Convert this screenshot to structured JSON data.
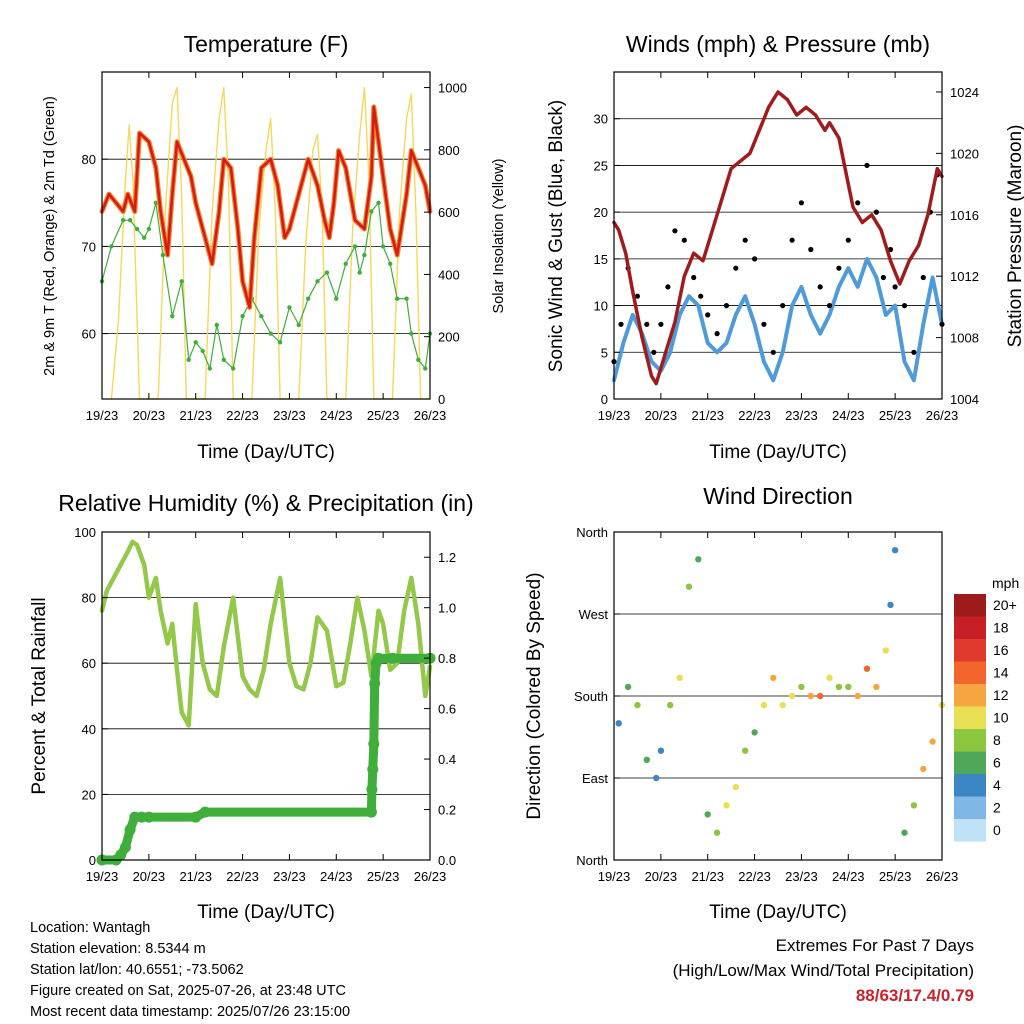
{
  "x_ticks": [
    "19/23",
    "20/23",
    "21/23",
    "22/23",
    "23/23",
    "24/23",
    "25/23",
    "26/23"
  ],
  "colors": {
    "red": "#d7191c",
    "orange": "#f08a24",
    "green": "#3fae3a",
    "yellow": "#f6d75c",
    "black": "#000000",
    "blue": "#4f9bd9",
    "maroon": "#a01c1c",
    "lightgreen": "#93c84b"
  },
  "panels": {
    "temperature": {
      "title": "Temperature (F)",
      "xlabel": "Time (Day/UTC)",
      "ylabel_left": "2m & 9m T (Red, Orange) & 2m Td (Green)",
      "ylabel_right": "Solar Insolation (Yellow)",
      "yticks_left": [
        "60",
        "70",
        "80"
      ],
      "yticks_right": [
        "0",
        "200",
        "400",
        "600",
        "800",
        "1000"
      ]
    },
    "winds": {
      "title": "Winds (mph) & Pressure (mb)",
      "xlabel": "Time (Day/UTC)",
      "ylabel_left": "Sonic Wind & Gust (Blue, Black)",
      "ylabel_right": "Station Pressure (Maroon)",
      "yticks_left": [
        "0",
        "5",
        "10",
        "15",
        "20",
        "25",
        "30"
      ],
      "yticks_right": [
        "1004",
        "1008",
        "1012",
        "1016",
        "1020",
        "1024"
      ]
    },
    "humidity": {
      "title": "Relative Humidity (%) & Precipitation (in)",
      "xlabel": "Time (Day/UTC)",
      "ylabel_left": "Percent & Total Rainfall",
      "yticks_left": [
        "0",
        "20",
        "40",
        "60",
        "80",
        "100"
      ],
      "yticks_right": [
        "0.0",
        "0.2",
        "0.4",
        "0.6",
        "0.8",
        "1.0",
        "1.2"
      ]
    },
    "direction": {
      "title": "Wind Direction",
      "xlabel": "Time (Day/UTC)",
      "ylabel_left": "Direction (Colored By Speed)",
      "yticks_left": [
        "North",
        "East",
        "South",
        "West",
        "North"
      ],
      "legend_title": "mph",
      "legend_labels": [
        "20+",
        "18",
        "16",
        "14",
        "12",
        "10",
        "8",
        "6",
        "4",
        "2",
        "0"
      ],
      "legend_colors": [
        "#9e1b1b",
        "#c61f26",
        "#e03a2e",
        "#f2652c",
        "#f7a540",
        "#e8df55",
        "#8cc63f",
        "#4fa85a",
        "#3d86c6",
        "#7fb8e6",
        "#bfe2f7"
      ]
    }
  },
  "chart_data": [
    {
      "type": "line",
      "title": "Temperature (F)",
      "xlabel": "Time (Day/UTC)",
      "ylabel": "2m & 9m T (Red, Orange) & 2m Td (Green)",
      "y2label": "Solar Insolation (Yellow)",
      "ylim": [
        52.5,
        90
      ],
      "y2lim": [
        0,
        1050
      ],
      "xlim": [
        0,
        7
      ],
      "x_unit": "days since 19/23",
      "series": [
        {
          "name": "2m & 9m T (Red, Orange)",
          "axis": "left",
          "x": [
            0,
            0.15,
            0.3,
            0.45,
            0.55,
            0.7,
            0.8,
            1.0,
            1.15,
            1.25,
            1.4,
            1.5,
            1.6,
            1.75,
            1.9,
            2.0,
            2.2,
            2.35,
            2.5,
            2.6,
            2.75,
            2.9,
            3.0,
            3.15,
            3.25,
            3.4,
            3.6,
            3.75,
            3.9,
            4.0,
            4.2,
            4.4,
            4.6,
            4.75,
            4.85,
            4.95,
            5.05,
            5.2,
            5.4,
            5.6,
            5.75,
            5.8,
            5.9,
            6.0,
            6.15,
            6.3,
            6.5,
            6.6,
            6.75,
            6.9,
            7.0
          ],
          "y": [
            74,
            76,
            75,
            74,
            76,
            74,
            83,
            82,
            79,
            74,
            69,
            76,
            82,
            80,
            78,
            75,
            71,
            68,
            74,
            80,
            79,
            72,
            66,
            63,
            71,
            79,
            80,
            77,
            71,
            72,
            76,
            80,
            77,
            73,
            71,
            75,
            81,
            79,
            73,
            72,
            78,
            86,
            82,
            78,
            72,
            69,
            76,
            81,
            79,
            77,
            74
          ]
        },
        {
          "name": "2m Td (Green)",
          "axis": "left",
          "x": [
            0,
            0.2,
            0.45,
            0.6,
            0.75,
            0.9,
            1.0,
            1.15,
            1.3,
            1.5,
            1.7,
            1.85,
            2.0,
            2.15,
            2.3,
            2.45,
            2.6,
            2.8,
            3.0,
            3.2,
            3.4,
            3.6,
            3.8,
            4.0,
            4.2,
            4.4,
            4.6,
            4.8,
            5.0,
            5.2,
            5.4,
            5.5,
            5.6,
            5.75,
            5.9,
            6.0,
            6.15,
            6.3,
            6.5,
            6.6,
            6.75,
            6.9,
            7.0
          ],
          "y": [
            66,
            70,
            73,
            73,
            72,
            71,
            72,
            75,
            69,
            62,
            66,
            57,
            59,
            58,
            56,
            61,
            57,
            56,
            62,
            64,
            62,
            60,
            59,
            63,
            61,
            64,
            66,
            67,
            64,
            68,
            70,
            67,
            69,
            74,
            75,
            70,
            68,
            64,
            64,
            60,
            57,
            56,
            60
          ]
        },
        {
          "name": "Solar Insolation (Yellow)",
          "axis": "right",
          "x": [
            0.2,
            0.35,
            0.5,
            0.58,
            0.66,
            0.8,
            1.2,
            1.35,
            1.5,
            1.6,
            1.7,
            1.8,
            2.2,
            2.35,
            2.5,
            2.6,
            2.7,
            2.8,
            3.2,
            3.35,
            3.5,
            3.6,
            3.7,
            3.8,
            4.2,
            4.35,
            4.5,
            4.6,
            4.7,
            4.8,
            5.2,
            5.35,
            5.5,
            5.6,
            5.7,
            5.8,
            6.2,
            6.35,
            6.5,
            6.6,
            6.7,
            6.8,
            7.0
          ],
          "y": [
            0,
            250,
            700,
            880,
            700,
            0,
            0,
            600,
            950,
            1000,
            650,
            0,
            0,
            600,
            900,
            1000,
            700,
            0,
            0,
            550,
            800,
            900,
            600,
            0,
            0,
            500,
            800,
            850,
            600,
            0,
            0,
            550,
            850,
            1000,
            700,
            0,
            0,
            600,
            900,
            980,
            600,
            0,
            0
          ]
        }
      ]
    },
    {
      "type": "line",
      "title": "Winds (mph) & Pressure (mb)",
      "xlabel": "Time (Day/UTC)",
      "ylabel": "Sonic Wind & Gust (Blue, Black)",
      "y2label": "Station Pressure (Maroon)",
      "ylim": [
        0,
        35
      ],
      "y2lim": [
        1004,
        1025.3
      ],
      "xlim": [
        0,
        7
      ],
      "x_unit": "days since 19/23",
      "series": [
        {
          "name": "Gust (Black)",
          "axis": "left",
          "x": [
            0,
            0.15,
            0.3,
            0.5,
            0.7,
            0.85,
            1.0,
            1.15,
            1.3,
            1.5,
            1.7,
            1.85,
            2.0,
            2.2,
            2.4,
            2.6,
            2.8,
            3.0,
            3.2,
            3.4,
            3.6,
            3.8,
            4.0,
            4.2,
            4.4,
            4.6,
            4.8,
            5.0,
            5.2,
            5.4,
            5.6,
            5.75,
            5.9,
            6.0,
            6.2,
            6.4,
            6.6,
            6.75,
            6.9,
            7.0
          ],
          "y": [
            4,
            8,
            14,
            11,
            8,
            5,
            8,
            12,
            18,
            17,
            13,
            11,
            9,
            7,
            10,
            14,
            17,
            15,
            8,
            5,
            10,
            17,
            21,
            16,
            12,
            10,
            14,
            17,
            21,
            25,
            20,
            13,
            16,
            12,
            10,
            5,
            13,
            20,
            24,
            8
          ]
        },
        {
          "name": "Sonic Wind (Blue)",
          "axis": "left",
          "x": [
            0,
            0.2,
            0.4,
            0.6,
            0.8,
            1.0,
            1.2,
            1.4,
            1.6,
            1.8,
            2.0,
            2.2,
            2.4,
            2.6,
            2.8,
            3.0,
            3.2,
            3.4,
            3.6,
            3.8,
            4.0,
            4.2,
            4.4,
            4.6,
            4.8,
            5.0,
            5.2,
            5.4,
            5.6,
            5.8,
            6.0,
            6.2,
            6.4,
            6.6,
            6.8,
            7.0
          ],
          "y": [
            2,
            6,
            9,
            7,
            4,
            3,
            5,
            9,
            11,
            10,
            6,
            5,
            6,
            9,
            11,
            8,
            4,
            2,
            5,
            10,
            12,
            9,
            7,
            9,
            12,
            14,
            12,
            15,
            13,
            9,
            10,
            4,
            2,
            8,
            13,
            8
          ]
        },
        {
          "name": "Station Pressure (Maroon)",
          "axis": "right",
          "x": [
            0,
            0.1,
            0.25,
            0.4,
            0.6,
            0.8,
            0.9,
            1.1,
            1.3,
            1.5,
            1.7,
            1.9,
            2.1,
            2.3,
            2.5,
            2.7,
            2.9,
            3.1,
            3.3,
            3.5,
            3.7,
            3.9,
            4.1,
            4.3,
            4.5,
            4.6,
            4.8,
            5.0,
            5.1,
            5.3,
            5.5,
            5.7,
            5.9,
            6.1,
            6.3,
            6.5,
            6.7,
            6.9,
            7.0
          ],
          "y": [
            1015.5,
            1015,
            1013.5,
            1011,
            1008,
            1005.5,
            1005,
            1007,
            1009,
            1012,
            1013.5,
            1013,
            1015,
            1017,
            1019,
            1019.5,
            1020,
            1021.5,
            1023,
            1024,
            1023.5,
            1022.5,
            1023,
            1022.5,
            1021.5,
            1022,
            1021,
            1018,
            1016.5,
            1015.5,
            1016,
            1015,
            1013,
            1011.5,
            1013,
            1014,
            1016,
            1019,
            1018.5
          ]
        }
      ]
    },
    {
      "type": "line",
      "title": "Relative Humidity (%) & Precipitation (in)",
      "xlabel": "Time (Day/UTC)",
      "ylabel": "Percent & Total Rainfall",
      "ylim": [
        0,
        100
      ],
      "y2lim": [
        0,
        1.3
      ],
      "xlim": [
        0,
        7
      ],
      "x_unit": "days since 19/23",
      "series": [
        {
          "name": "Relative Humidity (%)",
          "axis": "left",
          "x": [
            0,
            0.1,
            0.25,
            0.4,
            0.55,
            0.65,
            0.75,
            0.9,
            1.0,
            1.15,
            1.25,
            1.4,
            1.5,
            1.6,
            1.7,
            1.85,
            2.0,
            2.15,
            2.3,
            2.45,
            2.6,
            2.8,
            3.0,
            3.15,
            3.3,
            3.45,
            3.6,
            3.8,
            4.0,
            4.15,
            4.3,
            4.45,
            4.6,
            4.8,
            5.0,
            5.15,
            5.3,
            5.45,
            5.6,
            5.75,
            5.9,
            6.0,
            6.15,
            6.3,
            6.45,
            6.6,
            6.75,
            6.9,
            7.0
          ],
          "y": [
            76,
            82,
            86,
            90,
            94,
            97,
            96,
            90,
            80,
            86,
            76,
            66,
            72,
            58,
            45,
            41,
            78,
            60,
            52,
            50,
            65,
            80,
            56,
            52,
            50,
            58,
            72,
            86,
            60,
            53,
            52,
            60,
            74,
            70,
            53,
            54,
            66,
            80,
            70,
            56,
            76,
            72,
            58,
            60,
            76,
            86,
            72,
            50,
            59
          ]
        },
        {
          "name": "Total Precipitation (in)",
          "axis": "right",
          "x": [
            0,
            0.3,
            0.4,
            0.5,
            0.6,
            0.7,
            0.85,
            1.0,
            2.0,
            2.2,
            5.75,
            5.76,
            5.78,
            5.8,
            5.82,
            5.85,
            5.9,
            6.2,
            7.0
          ],
          "y": [
            0,
            0,
            0.02,
            0.05,
            0.12,
            0.17,
            0.17,
            0.17,
            0.17,
            0.19,
            0.19,
            0.28,
            0.36,
            0.46,
            0.7,
            0.78,
            0.8,
            0.8,
            0.8
          ]
        }
      ]
    },
    {
      "type": "scatter",
      "title": "Wind Direction",
      "xlabel": "Time (Day/UTC)",
      "ylabel": "Direction (Colored By Speed)",
      "xlim": [
        0,
        7
      ],
      "x_unit": "days since 19/23",
      "ylim": [
        0,
        360
      ],
      "y_ticks": [
        "North",
        "East",
        "South",
        "West",
        "North"
      ],
      "legend_title": "mph",
      "series": [
        {
          "name": "Wind direction (deg), colored by speed (mph)",
          "x": [
            0.1,
            0.3,
            0.5,
            0.7,
            0.9,
            1.0,
            1.2,
            1.4,
            1.6,
            1.8,
            2.0,
            2.2,
            2.4,
            2.6,
            2.8,
            3.0,
            3.2,
            3.4,
            3.6,
            3.8,
            4.0,
            4.2,
            4.4,
            4.6,
            4.8,
            5.0,
            5.2,
            5.4,
            5.6,
            5.8,
            5.9,
            6.0,
            6.2,
            6.4,
            6.6,
            6.8,
            7.0
          ],
          "y": [
            150,
            190,
            170,
            110,
            90,
            120,
            170,
            200,
            300,
            330,
            50,
            30,
            60,
            80,
            120,
            140,
            170,
            200,
            170,
            180,
            190,
            180,
            180,
            200,
            190,
            190,
            180,
            210,
            190,
            230,
            280,
            340,
            30,
            60,
            100,
            130,
            170
          ],
          "speed": [
            3,
            5,
            8,
            6,
            4,
            4,
            7,
            9,
            8,
            6,
            5,
            7,
            9,
            10,
            8,
            6,
            9,
            11,
            10,
            9,
            8,
            12,
            13,
            10,
            8,
            7,
            11,
            14,
            12,
            10,
            4,
            3,
            6,
            8,
            11,
            12,
            9
          ]
        }
      ]
    }
  ],
  "info": {
    "location": "Location: Wantagh",
    "elevation": "Station elevation: 8.5344 m",
    "latlon": "Station lat/lon: 40.6551; -73.5062",
    "created": "Figure created on Sat, 2025-07-26, at 23:48 UTC",
    "timestamp": "Most recent data timestamp: 2025/07/26 23:15:00"
  },
  "extremes": {
    "line1": "Extremes For Past 7 Days",
    "line2": "(High/Low/Max Wind/Total Precipitation)",
    "values": "88/63/17.4/0.79",
    "values_color": "#c8232c"
  }
}
